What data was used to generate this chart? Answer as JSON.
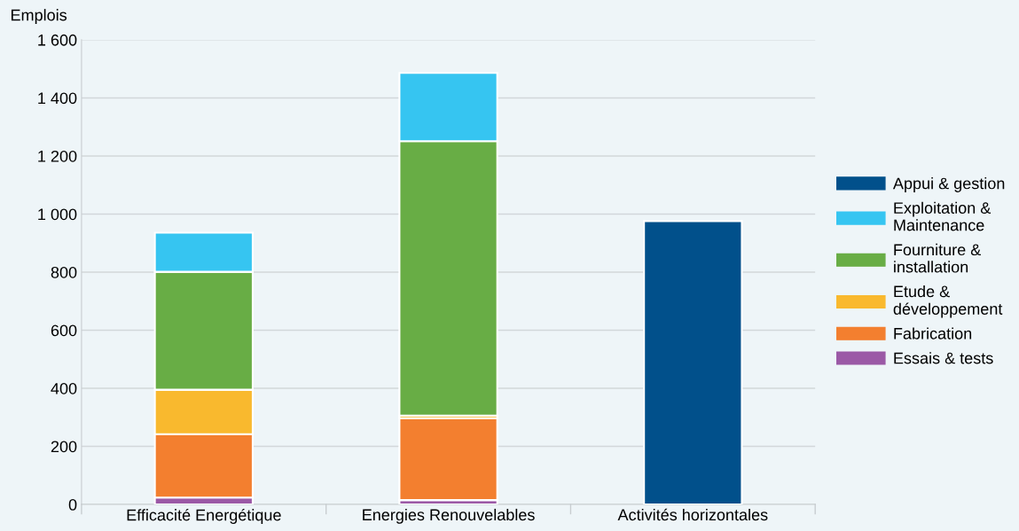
{
  "chart_data": {
    "type": "bar",
    "stacked": true,
    "ylabel": "Emplois",
    "categories": [
      "Efficacité Energétique",
      "Energies Renouvelables",
      "Activités horizontales"
    ],
    "series": [
      {
        "name": "Essais & tests",
        "color": "#9b59a6",
        "values": [
          24,
          15,
          null
        ]
      },
      {
        "name": "Fabrication",
        "color": "#f37f2f",
        "values": [
          218,
          282,
          null
        ]
      },
      {
        "name": "Etude & développement",
        "color": "#f9b92e",
        "values": [
          153,
          9,
          null
        ]
      },
      {
        "name": "Fourniture & installation",
        "color": "#68ad45",
        "values": [
          406,
          945,
          null
        ]
      },
      {
        "name": "Exploitation & Maintenance",
        "color": "#36c5f1",
        "values": [
          135,
          235,
          null
        ]
      },
      {
        "name": "Appui & gestion",
        "color": "#01508b",
        "values": [
          null,
          null,
          976
        ]
      }
    ],
    "ylim": [
      0,
      1600
    ],
    "yticks": [
      {
        "value": 0,
        "label": "0"
      },
      {
        "value": 200,
        "label": "200"
      },
      {
        "value": 400,
        "label": "400"
      },
      {
        "value": 600,
        "label": "600"
      },
      {
        "value": 800,
        "label": "800"
      },
      {
        "value": 1000,
        "label": "1 000"
      },
      {
        "value": 1200,
        "label": "1 200"
      },
      {
        "value": 1400,
        "label": "1 400"
      },
      {
        "value": 1600,
        "label": "1 600"
      }
    ],
    "grid": "y",
    "legend": "right"
  }
}
